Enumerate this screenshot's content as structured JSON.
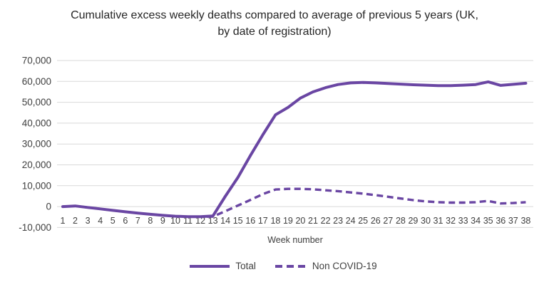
{
  "chart_data": {
    "type": "line",
    "title": "Cumulative excess weekly deaths compared to average of previous 5 years (UK, by date of registration)",
    "xlabel": "Week number",
    "ylabel": "",
    "x": [
      1,
      2,
      3,
      4,
      5,
      6,
      7,
      8,
      9,
      10,
      11,
      12,
      13,
      14,
      15,
      16,
      17,
      18,
      19,
      20,
      21,
      22,
      23,
      24,
      25,
      26,
      27,
      28,
      29,
      30,
      31,
      32,
      33,
      34,
      35,
      36,
      37,
      38
    ],
    "series": [
      {
        "name": "Total",
        "style": "solid",
        "values": [
          0,
          300,
          -400,
          -1100,
          -1800,
          -2500,
          -3100,
          -3700,
          -4200,
          -4600,
          -4800,
          -4800,
          -4500,
          5000,
          14000,
          24500,
          34500,
          44000,
          47500,
          52000,
          55000,
          57000,
          58500,
          59300,
          59500,
          59300,
          59000,
          58700,
          58400,
          58200,
          58000,
          58000,
          58200,
          58500,
          59800,
          58100,
          58600,
          59100
        ]
      },
      {
        "name": "Non COVID-19",
        "style": "dashed",
        "values": [
          0,
          300,
          -400,
          -1100,
          -1800,
          -2500,
          -3100,
          -3700,
          -4200,
          -4600,
          -4800,
          -4800,
          -4800,
          -2200,
          500,
          3200,
          6000,
          8200,
          8500,
          8500,
          8300,
          7800,
          7400,
          6800,
          6200,
          5500,
          4700,
          3900,
          3100,
          2500,
          2100,
          1900,
          1900,
          2100,
          2700,
          1500,
          1700,
          2100
        ]
      }
    ],
    "ylim": [
      -10000,
      70000
    ],
    "y_tick_step": 10000,
    "y_tick_labels": [
      "70,000",
      "60,000",
      "50,000",
      "40,000",
      "30,000",
      "20,000",
      "10,000",
      "0",
      "-10,000"
    ],
    "grid": true,
    "legend_position": "bottom",
    "line_color": "#6A46A3",
    "gridline_color": "#D9D9D9",
    "text_color": "#404040",
    "title_color": "#262626"
  }
}
